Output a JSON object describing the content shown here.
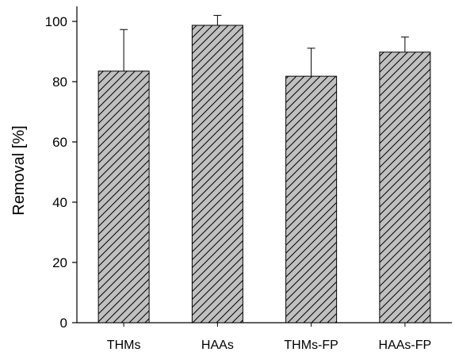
{
  "chart_data": {
    "type": "bar",
    "title": "",
    "xlabel": "",
    "ylabel": "Removal [%]",
    "ylim": [
      0,
      105
    ],
    "yticks": [
      0,
      20,
      40,
      60,
      80,
      100
    ],
    "grid": false,
    "legend": "none",
    "categories": [
      "THMs",
      "HAAs",
      "THMs-FP",
      "HAAs-FP"
    ],
    "values": [
      83.5,
      98.7,
      81.8,
      89.8
    ],
    "error_upper": [
      13.8,
      3.3,
      9.3,
      5.0
    ],
    "bar_fill": "#c0c0c0",
    "bar_hatch": "diagonal"
  }
}
